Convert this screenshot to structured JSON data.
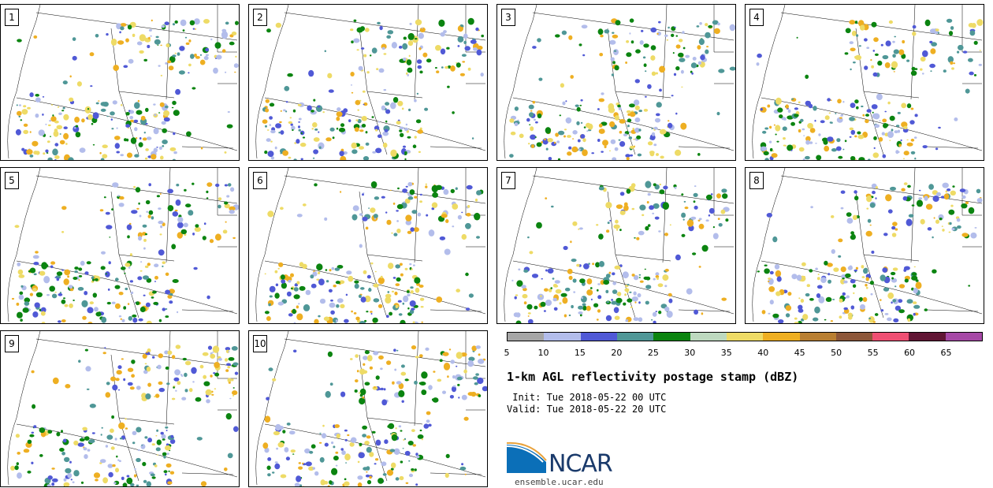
{
  "panels": [
    "1",
    "2",
    "3",
    "4",
    "5",
    "6",
    "7",
    "8",
    "9",
    "10"
  ],
  "colorbar": {
    "ticks": [
      "5",
      "10",
      "15",
      "20",
      "25",
      "30",
      "35",
      "40",
      "45",
      "50",
      "55",
      "60",
      "65"
    ],
    "colors": [
      "#a6a6a6",
      "#b3bdeb",
      "#5059d6",
      "#4f9797",
      "#0b8410",
      "#bdd9bf",
      "#eedb66",
      "#eeaf22",
      "#b97f32",
      "#8d573a",
      "#ef4f73",
      "#611634",
      "#a648a6"
    ]
  },
  "title": "1-km AGL reflectivity postage stamp (dBZ)",
  "init": " Init: Tue 2018-05-22 00 UTC",
  "valid": "Valid: Tue 2018-05-22 20 UTC",
  "logo": {
    "name": "NCAR",
    "url": "ensemble.ucar.edu"
  }
}
